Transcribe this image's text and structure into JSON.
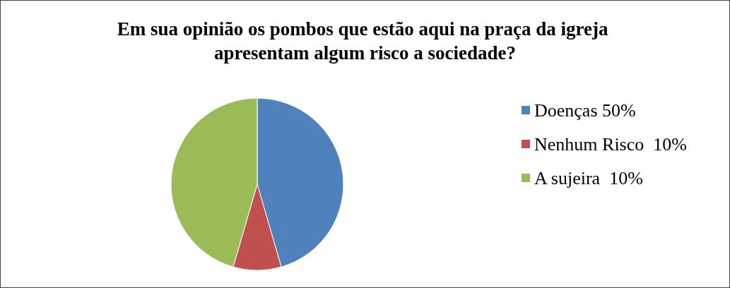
{
  "chart_data": {
    "type": "pie",
    "title": "Em sua opinião os pombos que estão aqui na praça da igreja apresentam algum risco a sociedade?",
    "categories": [
      "Doenças 50%",
      "Nenhum Risco  10%",
      "A sujeira  10%"
    ],
    "values": [
      45.5,
      9,
      45.5
    ],
    "colors": [
      "#4f81bd",
      "#c0504d",
      "#9bbb59"
    ],
    "legend": "right"
  }
}
